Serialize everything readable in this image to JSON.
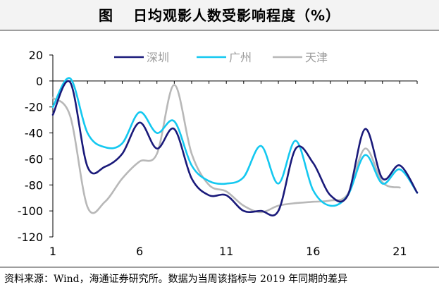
{
  "header": {
    "fig_label": "图",
    "title": "日均观影人数受影响程度（%）"
  },
  "source_note": "资料来源：Wind，海通证券研究所。数据为当周该指标与 2019 年同期的差异",
  "chart_data": {
    "type": "line",
    "title": "日均观影人数受影响程度（%）",
    "xlabel": "",
    "ylabel": "",
    "xlim": [
      1,
      22
    ],
    "ylim": [
      -120,
      20
    ],
    "xticks": [
      1,
      6,
      11,
      16,
      21
    ],
    "yticks": [
      20,
      0,
      -20,
      -40,
      -60,
      -80,
      -100,
      -120
    ],
    "grid": false,
    "legend": "top-center",
    "series": [
      {
        "name": "深圳",
        "color": "#1a1a7a",
        "x": [
          1,
          2,
          3,
          4,
          5,
          6,
          7,
          8,
          9,
          10,
          11,
          12,
          13,
          14,
          15,
          16,
          17,
          18,
          19,
          20,
          21,
          22
        ],
        "values": [
          -26,
          -1,
          -66,
          -66,
          -56,
          -32,
          -52,
          -37,
          -75,
          -88,
          -88,
          -100,
          -100,
          -100,
          -52,
          -63,
          -88,
          -88,
          -37,
          -75,
          -65,
          -86
        ]
      },
      {
        "name": "广州",
        "color": "#14c8f0",
        "x": [
          1,
          2,
          3,
          4,
          5,
          6,
          7,
          8,
          9,
          10,
          11,
          12,
          13,
          14,
          15,
          16,
          17,
          18,
          19,
          20,
          21,
          22
        ],
        "values": [
          -20,
          2,
          -40,
          -51,
          -48,
          -24,
          -40,
          -31,
          -65,
          -77,
          -79,
          -74,
          -50,
          -79,
          -46,
          -84,
          -96,
          -88,
          -57,
          -79,
          -68,
          -86
        ]
      },
      {
        "name": "天津",
        "color": "#b8b8b8",
        "x": [
          1,
          2,
          3,
          4,
          5,
          6,
          7,
          8,
          9,
          10,
          11,
          12,
          13,
          14,
          15,
          16,
          17,
          18,
          19,
          20,
          21
        ],
        "values": [
          -13,
          -27,
          -97,
          -93,
          -75,
          -62,
          -56,
          -3,
          -56,
          -80,
          -85,
          -96,
          -101,
          -96,
          -94,
          -93,
          -92,
          -87,
          -52,
          -78,
          -82
        ]
      }
    ]
  }
}
